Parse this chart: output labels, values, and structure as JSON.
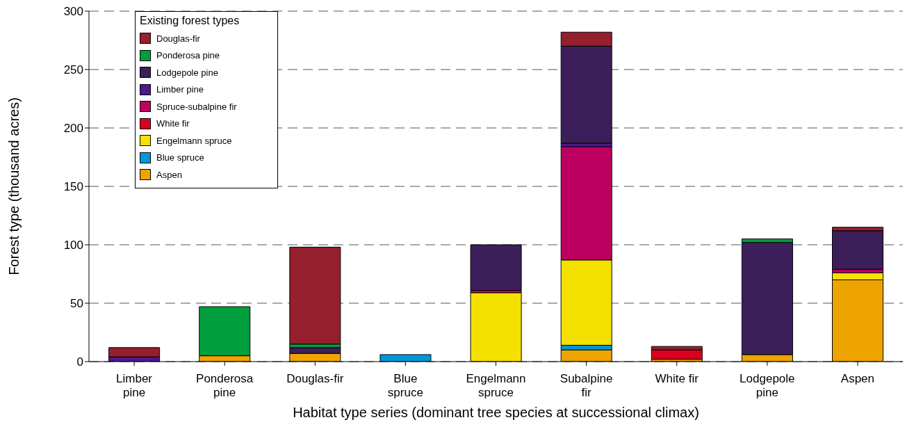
{
  "chart_data": {
    "type": "bar",
    "stacked": true,
    "xlabel": "Habitat type series (dominant tree species at successional climax)",
    "ylabel": "Forest type (thousand acres)",
    "legend_title": "Existing forest types",
    "categories": [
      "Limber pine",
      "Ponderosa pine",
      "Douglas-fir",
      "Blue spruce",
      "Engelmann spruce",
      "Subalpine fir",
      "White fir",
      "Lodgepole pine",
      "Aspen"
    ],
    "series": [
      {
        "name": "Aspen",
        "color": "#eea400",
        "values": [
          null,
          5,
          7,
          null,
          null,
          10,
          2,
          6,
          70
        ]
      },
      {
        "name": "Blue spruce",
        "color": "#0097d6",
        "values": [
          null,
          null,
          null,
          6,
          null,
          4,
          null,
          null,
          null
        ]
      },
      {
        "name": "Engelmann spruce",
        "color": "#f5e100",
        "values": [
          null,
          null,
          null,
          null,
          59,
          73,
          null,
          null,
          6
        ]
      },
      {
        "name": "White fir",
        "color": "#d9001f",
        "values": [
          null,
          null,
          null,
          null,
          null,
          null,
          8,
          null,
          null
        ]
      },
      {
        "name": "Spruce-subalpine fir",
        "color": "#bd0060",
        "values": [
          null,
          null,
          null,
          null,
          2,
          97,
          null,
          null,
          3
        ]
      },
      {
        "name": "Limber pine",
        "color": "#4b1a8c",
        "values": [
          4,
          null,
          null,
          null,
          null,
          3,
          null,
          null,
          null
        ]
      },
      {
        "name": "Lodgepole pine",
        "color": "#3c1f5a",
        "values": [
          null,
          null,
          5,
          null,
          39,
          83,
          null,
          96,
          33
        ]
      },
      {
        "name": "Ponderosa pine",
        "color": "#009e3d",
        "values": [
          null,
          42,
          3,
          null,
          null,
          null,
          null,
          3,
          null
        ]
      },
      {
        "name": "Douglas-fir",
        "color": "#951f2d",
        "values": [
          8,
          null,
          83,
          null,
          null,
          12,
          3,
          null,
          3
        ]
      }
    ],
    "ylim": [
      0,
      300
    ],
    "yticks": [
      0,
      50,
      100,
      150,
      200,
      250,
      300
    ],
    "grid": "y",
    "legend": "top left"
  }
}
